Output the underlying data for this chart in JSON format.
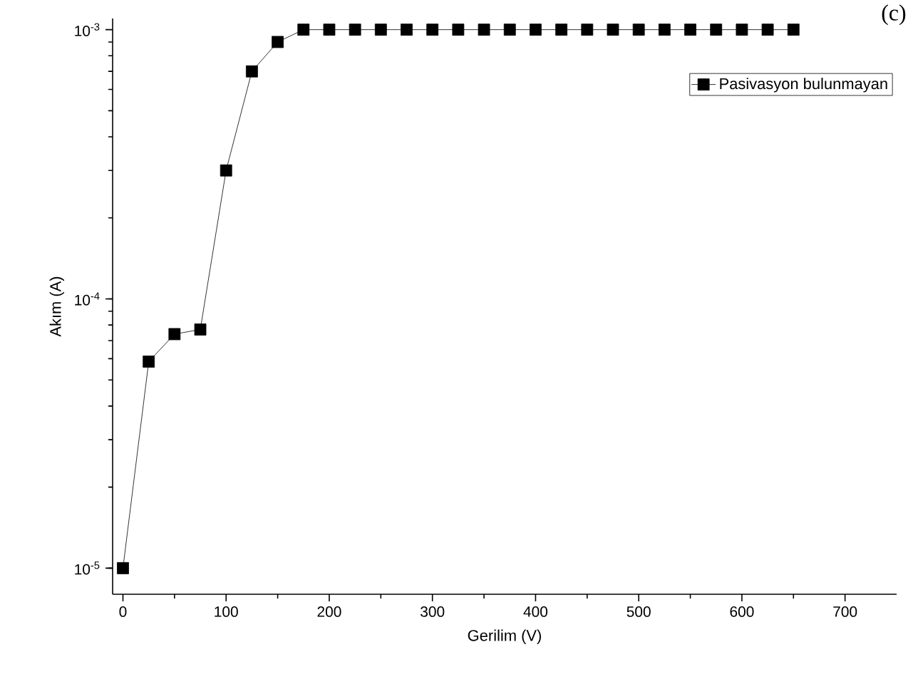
{
  "chart_data": {
    "type": "line",
    "xlabel": "Gerilim (V)",
    "ylabel": "Akım (A)",
    "annotations": [
      "(c)"
    ],
    "x": [
      0,
      25,
      50,
      75,
      100,
      125,
      150,
      175,
      200,
      225,
      250,
      275,
      300,
      325,
      350,
      375,
      400,
      425,
      450,
      475,
      500,
      525,
      550,
      575,
      600,
      625,
      650
    ],
    "series": [
      {
        "name": "Pasivasyon bulunmayan",
        "color": "#000000",
        "values": [
          1e-05,
          5.85e-05,
          7.4e-05,
          7.7e-05,
          0.0003,
          0.0007,
          0.0009,
          0.001,
          0.001,
          0.001,
          0.001,
          0.001,
          0.001,
          0.001,
          0.001,
          0.001,
          0.001,
          0.001,
          0.001,
          0.001,
          0.001,
          0.001,
          0.001,
          0.001,
          0.001,
          0.001,
          0.001
        ]
      }
    ],
    "xlim": [
      -10,
      750
    ],
    "xticks": [
      0,
      100,
      200,
      300,
      400,
      500,
      600,
      700
    ],
    "ylim": [
      8e-06,
      0.0011
    ],
    "yticks": [
      {
        "value": 1e-05,
        "label": "10$^{-5}$"
      },
      {
        "value": 0.0001,
        "label": "10$^{-4}$"
      },
      {
        "value": 0.001,
        "label": "10$^{-3}$"
      }
    ],
    "log": "y",
    "legend": "top right",
    "marker": "square",
    "line_style": "solid",
    "grid": false
  }
}
